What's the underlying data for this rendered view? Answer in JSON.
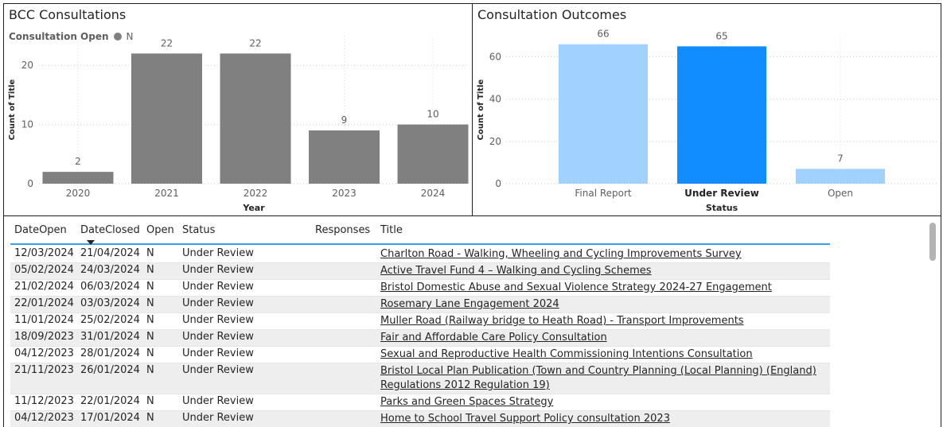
{
  "left_panel": {
    "title": "BCC Consultations",
    "legend_title": "Consultation Open",
    "legend_label": "N",
    "legend_color": "#808080"
  },
  "right_panel": {
    "title": "Consultation Outcomes"
  },
  "chart_data": [
    {
      "type": "bar",
      "title": "BCC Consultations",
      "xlabel": "Year",
      "ylabel": "Count of Title",
      "categories": [
        "2020",
        "2021",
        "2022",
        "2023",
        "2024"
      ],
      "series": [
        {
          "name": "N",
          "values": [
            2,
            22,
            22,
            9,
            10
          ],
          "color": "#808080"
        }
      ],
      "ylim": [
        0,
        25
      ],
      "yticks": [
        0,
        10,
        20
      ],
      "grid": true,
      "legend": "top-left"
    },
    {
      "type": "bar",
      "title": "Consultation Outcomes",
      "xlabel": "Status",
      "ylabel": "Count of Title",
      "categories": [
        "Final Report",
        "Under Review",
        "Open"
      ],
      "values": [
        66,
        65,
        7
      ],
      "colors": [
        "#a0d1ff",
        "#118dff",
        "#a0d1ff"
      ],
      "highlighted": "Under Review",
      "ylim": [
        0,
        70
      ],
      "yticks": [
        0,
        20,
        40,
        60
      ],
      "grid": true
    }
  ],
  "table": {
    "columns": [
      "DateOpen",
      "DateClosed",
      "Open",
      "Status",
      "Responses",
      "Title"
    ],
    "sort_column": "DateClosed",
    "rows": [
      {
        "date_open": "12/03/2024",
        "date_closed": "21/04/2024",
        "open": "N",
        "status": "Under Review",
        "responses": "",
        "title": "Charlton Road - Walking, Wheeling and Cycling Improvements Survey"
      },
      {
        "date_open": "05/02/2024",
        "date_closed": "24/03/2024",
        "open": "N",
        "status": "Under Review",
        "responses": "",
        "title": "Active Travel Fund 4 – Walking and Cycling Schemes"
      },
      {
        "date_open": "21/02/2024",
        "date_closed": "06/03/2024",
        "open": "N",
        "status": "Under Review",
        "responses": "",
        "title": "Bristol Domestic Abuse and Sexual Violence Strategy 2024-27 Engagement"
      },
      {
        "date_open": "22/01/2024",
        "date_closed": "03/03/2024",
        "open": "N",
        "status": "Under Review",
        "responses": "",
        "title": "Rosemary Lane Engagement 2024"
      },
      {
        "date_open": "11/01/2024",
        "date_closed": "25/02/2024",
        "open": "N",
        "status": "Under Review",
        "responses": "",
        "title": "Muller Road (Railway bridge to Heath Road) - Transport Improvements"
      },
      {
        "date_open": "18/09/2023",
        "date_closed": "31/01/2024",
        "open": "N",
        "status": "Under Review",
        "responses": "",
        "title": "Fair and Affordable Care Policy Consultation"
      },
      {
        "date_open": "04/12/2023",
        "date_closed": "28/01/2024",
        "open": "N",
        "status": "Under Review",
        "responses": "",
        "title": "Sexual and Reproductive Health Commissioning Intentions Consultation"
      },
      {
        "date_open": "21/11/2023",
        "date_closed": "26/01/2024",
        "open": "N",
        "status": "Under Review",
        "responses": "",
        "title": "Bristol Local Plan Publication (Town and Country Planning (Local Planning) (England) Regulations 2012 Regulation 19)"
      },
      {
        "date_open": "11/12/2023",
        "date_closed": "22/01/2024",
        "open": "N",
        "status": "Under Review",
        "responses": "",
        "title": "Parks and Green Spaces Strategy"
      },
      {
        "date_open": "04/12/2023",
        "date_closed": "17/01/2024",
        "open": "N",
        "status": "Under Review",
        "responses": "",
        "title": "Home to School Travel Support Policy consultation 2023"
      }
    ]
  }
}
